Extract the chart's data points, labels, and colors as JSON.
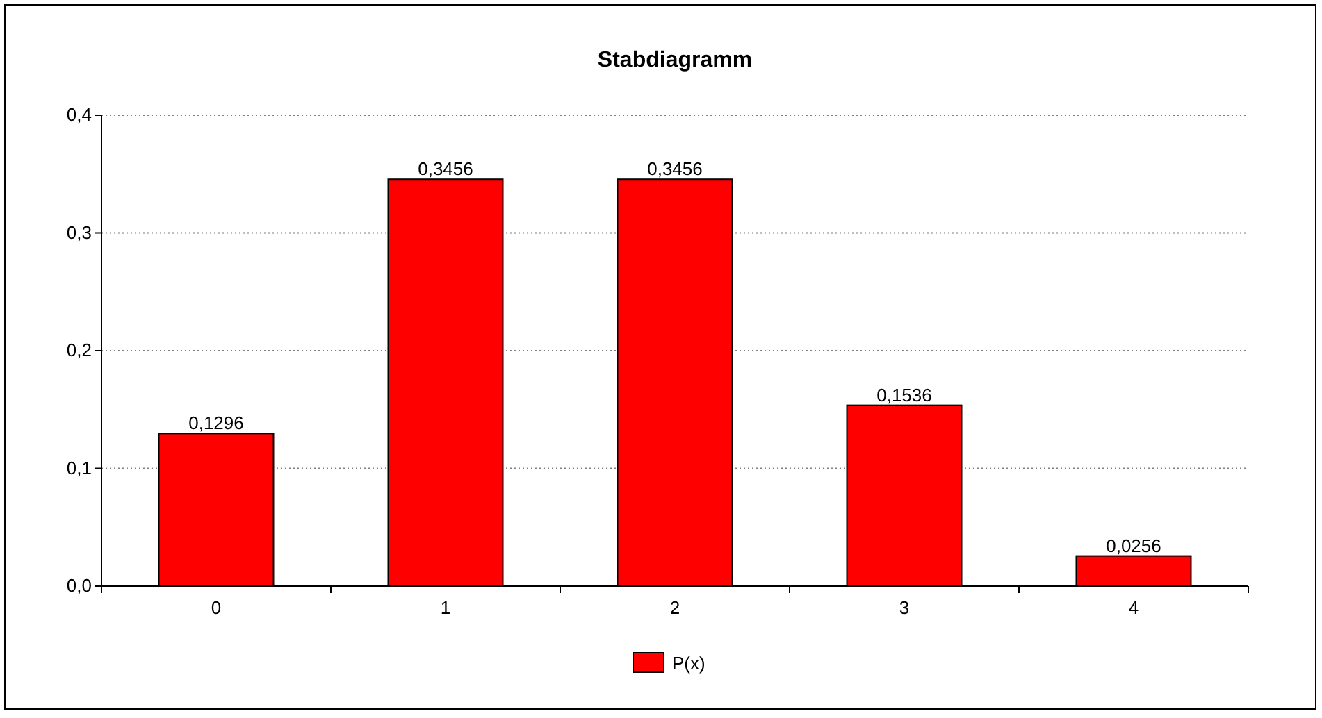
{
  "chart_data": {
    "type": "bar",
    "title": "Stabdiagramm",
    "categories": [
      "0",
      "1",
      "2",
      "3",
      "4"
    ],
    "series": [
      {
        "name": "P(x)",
        "color": "#ff0000",
        "values": [
          0.1296,
          0.3456,
          0.3456,
          0.1536,
          0.0256
        ],
        "value_labels": [
          "0,1296",
          "0,3456",
          "0,3456",
          "0,1536",
          "0,0256"
        ]
      }
    ],
    "ylim": [
      0,
      0.4
    ],
    "yticks": [
      {
        "value": 0,
        "label": "0,0"
      },
      {
        "value": 0.1,
        "label": "0,1"
      },
      {
        "value": 0.2,
        "label": "0,2"
      },
      {
        "value": 0.3,
        "label": "0,3"
      },
      {
        "value": 0.4,
        "label": "0,4"
      }
    ],
    "grid": "y",
    "legend": "bottom"
  }
}
